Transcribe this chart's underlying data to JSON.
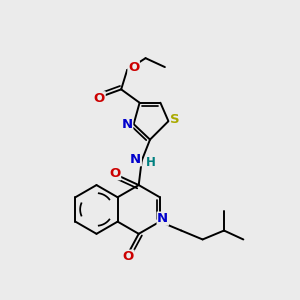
{
  "bg_color": "#ebebeb",
  "bond_color": "#000000",
  "bond_width": 1.4,
  "atom_colors": {
    "N": "#0000cc",
    "O": "#cc0000",
    "S": "#aaaa00",
    "H": "#008080",
    "C": "#000000"
  },
  "font_size": 8.5,
  "fig_size": [
    3.0,
    3.0
  ],
  "dpi": 100
}
